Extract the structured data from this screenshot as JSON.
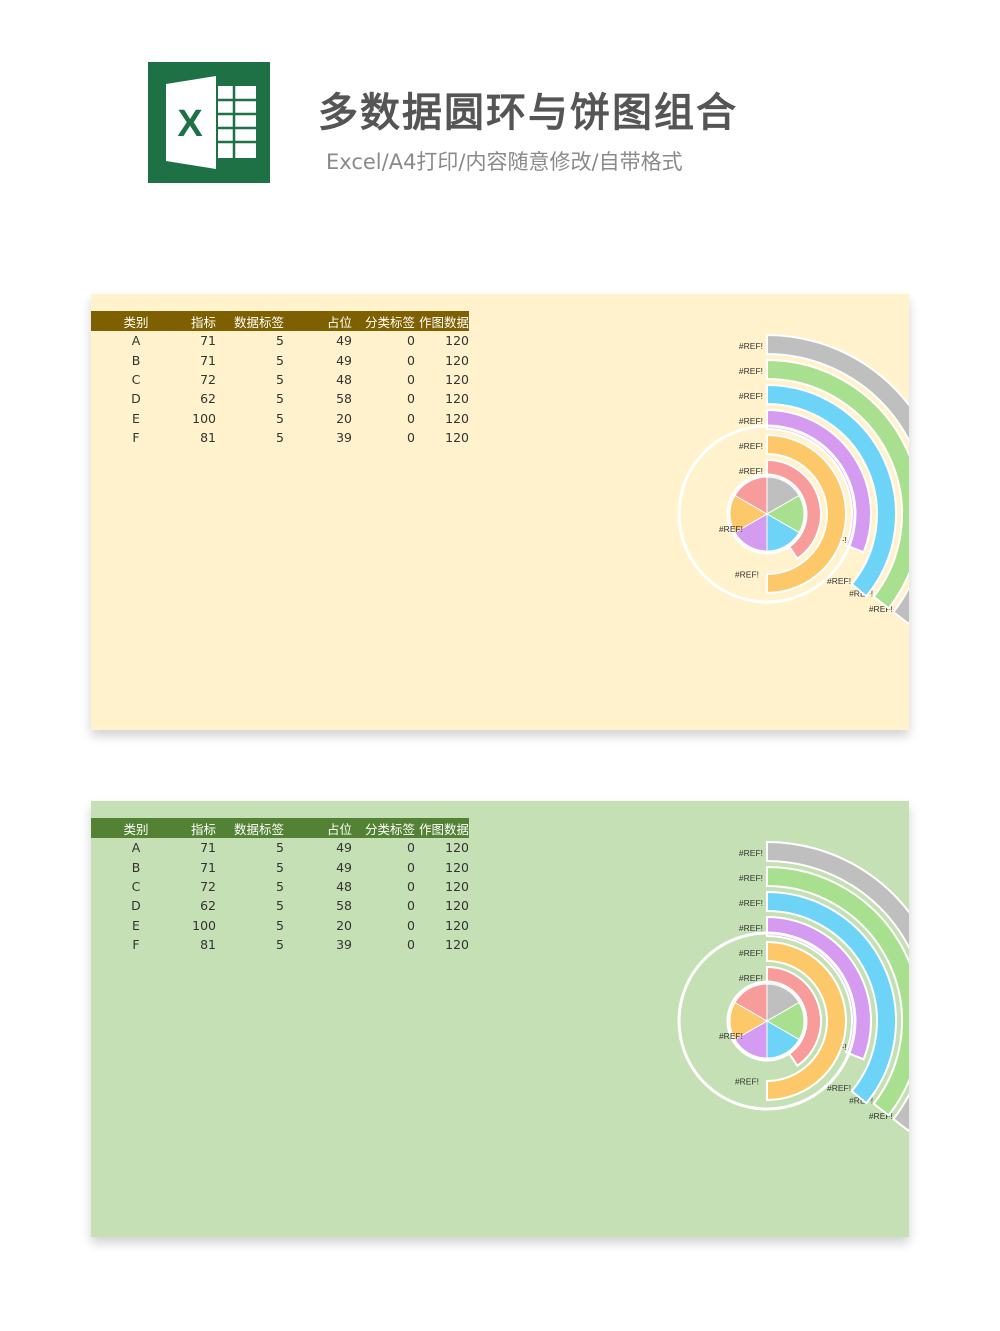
{
  "header": {
    "title": "多数据圆环与饼图组合",
    "subtitle": "Excel/A4打印/内容随意修改/自带格式",
    "logo_letter": "X",
    "logo_color": "#1e7145"
  },
  "table": {
    "columns": [
      "类别",
      "指标",
      "数据标签",
      "占位",
      "分类标签",
      "作图数据"
    ],
    "rows": [
      [
        "A",
        "71",
        "5",
        "49",
        "0",
        "120"
      ],
      [
        "B",
        "71",
        "5",
        "49",
        "0",
        "120"
      ],
      [
        "C",
        "72",
        "5",
        "48",
        "0",
        "120"
      ],
      [
        "D",
        "62",
        "5",
        "58",
        "0",
        "120"
      ],
      [
        "E",
        "100",
        "5",
        "20",
        "0",
        "120"
      ],
      [
        "F",
        "81",
        "5",
        "39",
        "0",
        "120"
      ]
    ]
  },
  "panels": [
    {
      "background": "#fff2cc",
      "header_color": "#7f6000"
    },
    {
      "background": "#c5e0b4",
      "header_color": "#548235"
    }
  ],
  "chart_data": {
    "type": "donut-pie-combo",
    "categories": [
      "A",
      "B",
      "C",
      "D",
      "E",
      "F"
    ],
    "series": [
      {
        "name": "指标",
        "values": [
          71,
          71,
          72,
          62,
          100,
          81
        ]
      },
      {
        "name": "占位",
        "values": [
          49,
          49,
          48,
          58,
          20,
          39
        ]
      },
      {
        "name": "作图数据",
        "values": [
          120,
          120,
          120,
          120,
          120,
          120
        ]
      }
    ],
    "ring_colors": [
      "#bfbfbf",
      "#a9e08f",
      "#6dd4f8",
      "#d59bf0",
      "#fdc86a",
      "#f89b9b"
    ],
    "data_label": "#REF!",
    "legend": "none"
  }
}
